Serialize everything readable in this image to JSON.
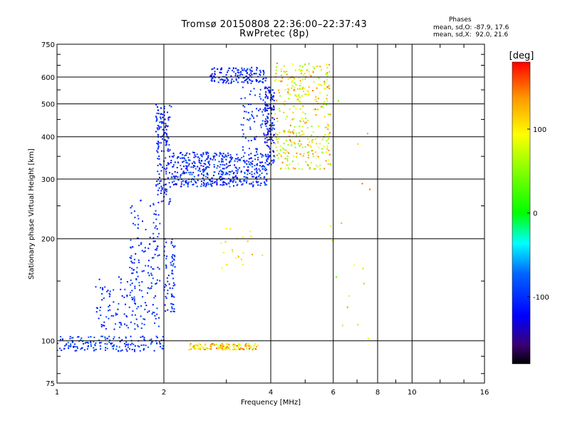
{
  "header": {
    "title": "Tromsø 20150808 22:36:00–22:37:43",
    "subtitle": "RwPretec (8p)"
  },
  "stats": {
    "heading": "Phases",
    "line_o": "mean, sd,O: -87.9, 17.6",
    "line_x": "mean, sd,X:  92.0, 21.6"
  },
  "colorbar": {
    "label": "[deg]",
    "ticks": [
      {
        "value": 100,
        "label": "100"
      },
      {
        "value": 0,
        "label": "0"
      },
      {
        "value": -100,
        "label": "-100"
      }
    ],
    "range": [
      -180,
      180
    ]
  },
  "chart_data": {
    "type": "scatter",
    "title": "Tromsø 20150808 22:36:00–22:37:43",
    "subtitle": "RwPretec (8p)",
    "xlabel": "Frequency [MHz]",
    "ylabel": "Stationary phase Virtual Height [km]",
    "x_scale": "log",
    "y_scale": "log",
    "xlim": [
      1,
      16
    ],
    "ylim": [
      75,
      750
    ],
    "x_ticks": [
      {
        "value": 1,
        "label": "1"
      },
      {
        "value": 2,
        "label": "2"
      },
      {
        "value": 4,
        "label": "4"
      },
      {
        "value": 6,
        "label": "6"
      },
      {
        "value": 8,
        "label": "8"
      },
      {
        "value": 10,
        "label": "10"
      },
      {
        "value": 16,
        "label": "16"
      }
    ],
    "y_ticks": [
      {
        "value": 75,
        "label": "75"
      },
      {
        "value": 100,
        "label": "100"
      },
      {
        "value": 200,
        "label": "200"
      },
      {
        "value": 300,
        "label": "300"
      },
      {
        "value": 400,
        "label": "400"
      },
      {
        "value": 500,
        "label": "500"
      },
      {
        "value": 600,
        "label": "600"
      },
      {
        "value": 750,
        "label": "750"
      }
    ],
    "grid": true,
    "color_by": "phase [deg]",
    "clusters": [
      {
        "x": [
          1.0,
          2.0
        ],
        "y": [
          93,
          103
        ],
        "phase": [
          -115,
          -75
        ],
        "density": 170
      },
      {
        "x": [
          1.28,
          1.95
        ],
        "y": [
          108,
          160
        ],
        "phase": [
          -120,
          -80
        ],
        "density": 150
      },
      {
        "x": [
          1.6,
          1.95
        ],
        "y": [
          160,
          260
        ],
        "phase": [
          -120,
          -85
        ],
        "density": 90
      },
      {
        "x": [
          1.9,
          2.1
        ],
        "y": [
          250,
          500
        ],
        "phase": [
          -125,
          -90
        ],
        "density": 160
      },
      {
        "x": [
          2.0,
          2.15
        ],
        "y": [
          120,
          200
        ],
        "phase": [
          -120,
          -85
        ],
        "density": 70
      },
      {
        "x": [
          2.1,
          3.9
        ],
        "y": [
          285,
          360
        ],
        "phase": [
          -135,
          -70
        ],
        "density": 480
      },
      {
        "x": [
          2.7,
          3.9
        ],
        "y": [
          575,
          640
        ],
        "phase": [
          -125,
          -85
        ],
        "density": 150
      },
      {
        "x": [
          3.3,
          3.9
        ],
        "y": [
          350,
          560
        ],
        "phase": [
          -120,
          -80
        ],
        "density": 70
      },
      {
        "x": [
          3.85,
          4.1
        ],
        "y": [
          330,
          560
        ],
        "phase": [
          -140,
          -85
        ],
        "density": 150
      },
      {
        "x": [
          4.1,
          5.9
        ],
        "y": [
          320,
          660
        ],
        "phase": [
          40,
          150
        ],
        "density": 360
      },
      {
        "x": [
          2.35,
          3.7
        ],
        "y": [
          94,
          98
        ],
        "phase": [
          60,
          160
        ],
        "density": 130
      },
      {
        "x": [
          2.9,
          3.9
        ],
        "y": [
          160,
          220
        ],
        "phase": [
          80,
          140
        ],
        "density": 22
      },
      {
        "x": [
          5.8,
          7.9
        ],
        "y": [
          95,
          520
        ],
        "phase": [
          30,
          160
        ],
        "density": 18
      }
    ]
  }
}
